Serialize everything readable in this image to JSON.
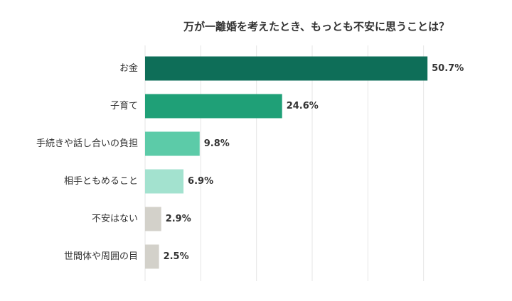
{
  "chart_data": {
    "type": "bar",
    "orientation": "horizontal",
    "title": "万が一離婚を考えたとき、もっとも不安に思うことは？",
    "categories": [
      "お金",
      "子育て",
      "手続きや話し合いの負担",
      "相手ともめること",
      "不安はない",
      "世間体や周囲の目"
    ],
    "values": [
      50.7,
      24.6,
      9.8,
      6.9,
      2.9,
      2.5
    ],
    "value_labels": [
      "50.7%",
      "24.6%",
      "9.8%",
      "6.9%",
      "2.9%",
      "2.5%"
    ],
    "colors": [
      "#0e6e58",
      "#1fa077",
      "#5ccba8",
      "#a3e2cf",
      "#d3d1ca",
      "#d3d1ca"
    ],
    "xlim": [
      0,
      60
    ],
    "xticks": [
      0,
      10,
      20,
      30,
      40,
      50
    ],
    "grid": true
  }
}
